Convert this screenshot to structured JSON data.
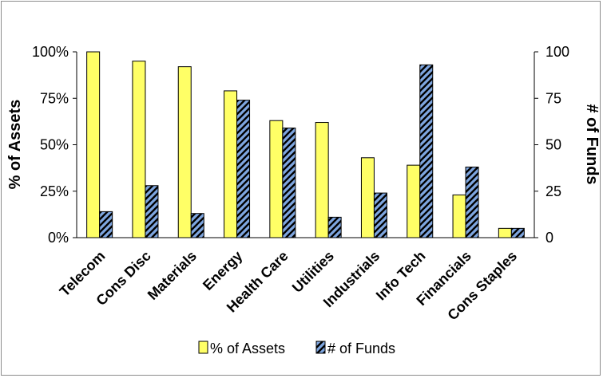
{
  "chart_data": {
    "type": "bar",
    "categories": [
      "Telecom",
      "Cons Disc",
      "Materials",
      "Energy",
      "Health Care",
      "Utilities",
      "Industrials",
      "Info Tech",
      "Financials",
      "Cons Staples"
    ],
    "series": [
      {
        "name": "% of Assets",
        "axis": "left",
        "values": [
          100,
          95,
          92,
          79,
          63,
          62,
          43,
          39,
          23,
          5
        ],
        "color": "#ffff66",
        "pattern": "solid"
      },
      {
        "name": "# of Funds",
        "axis": "right",
        "values": [
          14,
          28,
          13,
          74,
          59,
          11,
          24,
          93,
          38,
          5
        ],
        "color": "#7ea6e0",
        "pattern": "diagonal-stripes-black"
      }
    ],
    "ylabel_left": "% of Assets",
    "ylabel_right": "# of Funds",
    "ylim_left": [
      0,
      100
    ],
    "ylim_right": [
      0,
      100
    ],
    "yticks_left": [
      "0%",
      "25%",
      "50%",
      "75%",
      "100%"
    ],
    "yticks_right": [
      "0",
      "25",
      "50",
      "75",
      "100"
    ],
    "grid": false,
    "legend_position": "bottom"
  }
}
